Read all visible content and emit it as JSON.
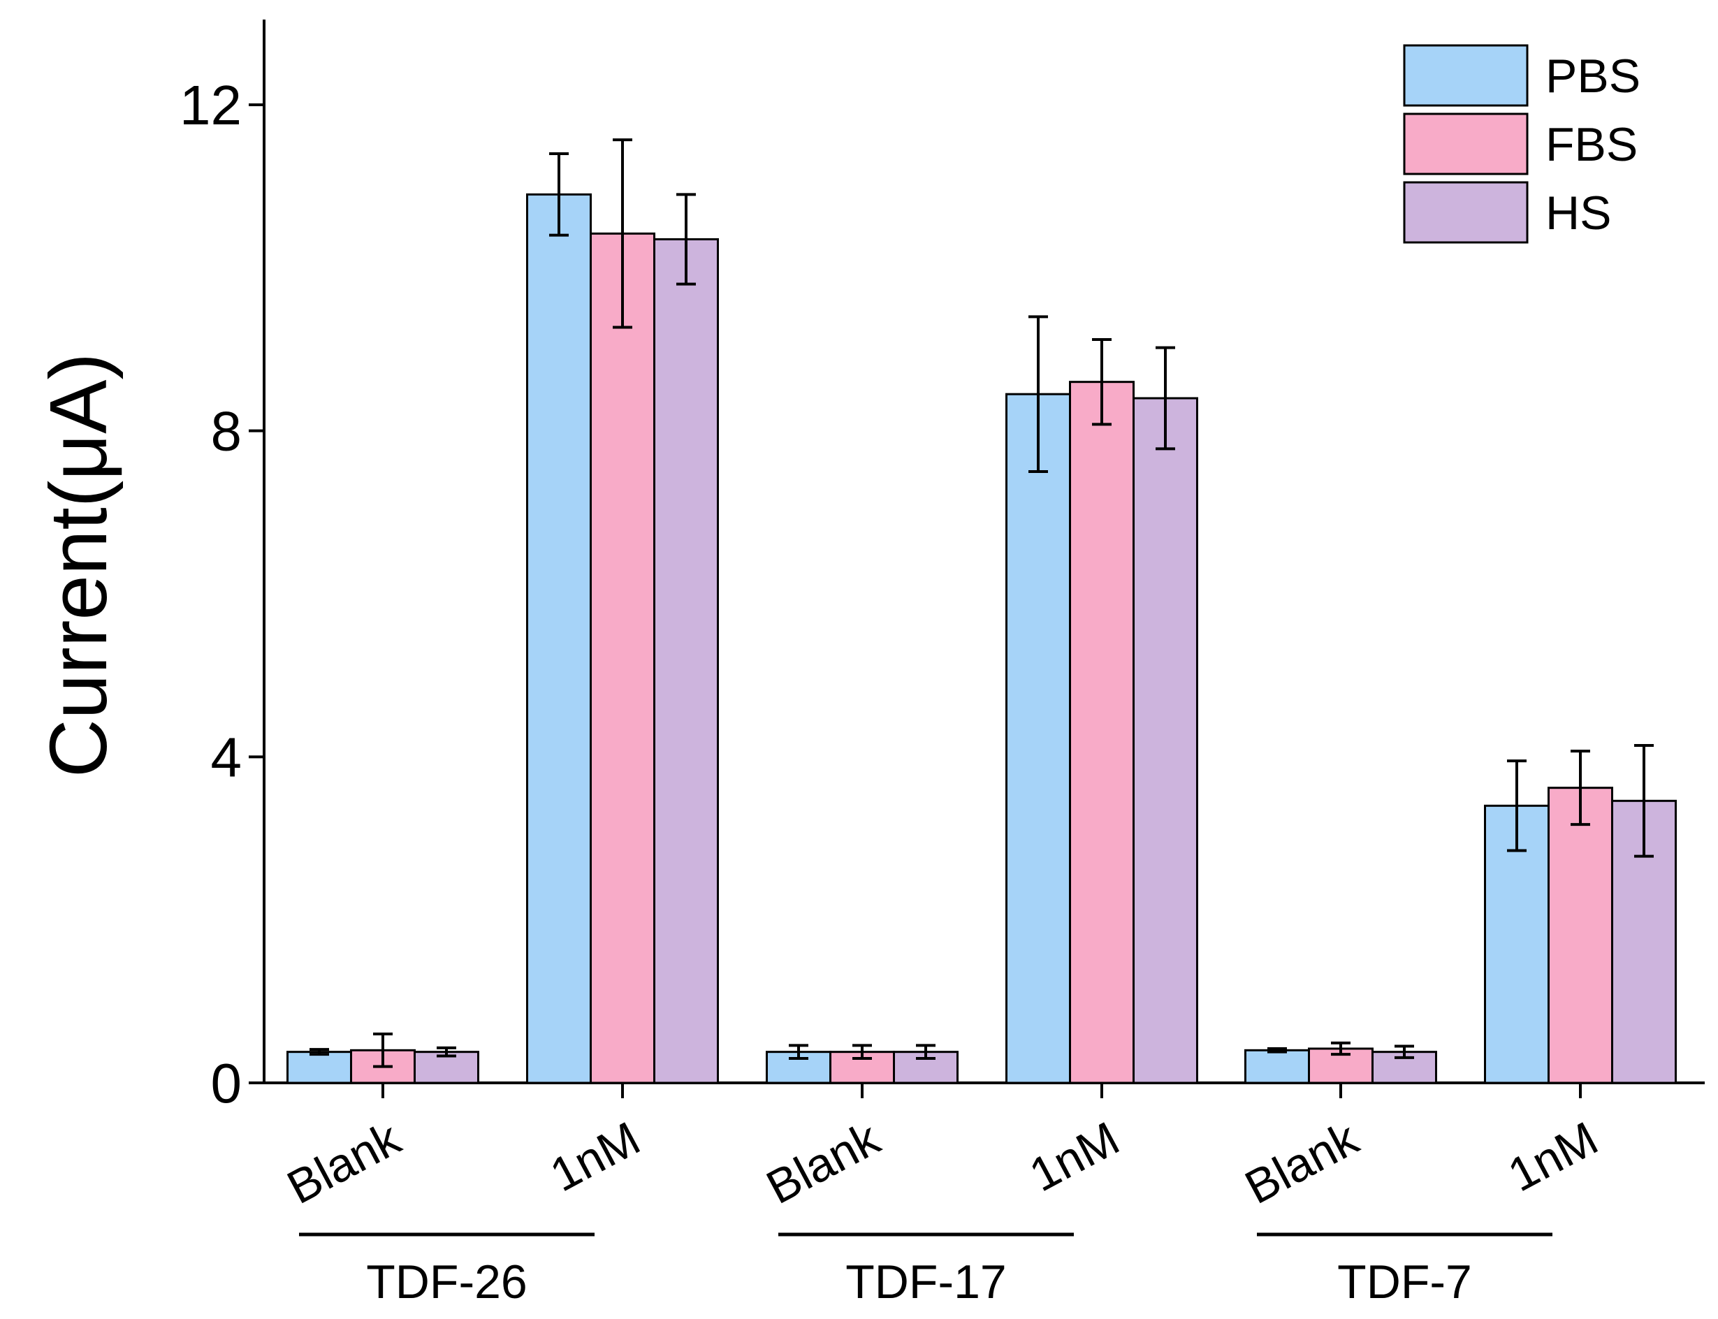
{
  "chart_data": {
    "type": "bar",
    "title": "",
    "xlabel": "",
    "ylabel": "Current(μA)",
    "ylim": [
      0,
      13
    ],
    "yticks": [
      0,
      4,
      8,
      12
    ],
    "grid": false,
    "legend_position": "top-right",
    "categories": [
      "Blank",
      "1nM",
      "Blank",
      "1nM",
      "Blank",
      "1nM"
    ],
    "groups": [
      {
        "label": "TDF-26",
        "categories": [
          0,
          1
        ]
      },
      {
        "label": "TDF-17",
        "categories": [
          2,
          3
        ]
      },
      {
        "label": "TDF-7",
        "categories": [
          4,
          5
        ]
      }
    ],
    "series": [
      {
        "name": "PBS",
        "color": "#a6d3f8",
        "values": [
          0.38,
          10.9,
          0.38,
          8.45,
          0.4,
          3.4
        ],
        "errors": [
          0.03,
          0.5,
          0.08,
          0.95,
          0.02,
          0.55
        ]
      },
      {
        "name": "FBS",
        "color": "#f8abc8",
        "values": [
          0.4,
          10.42,
          0.38,
          8.6,
          0.42,
          3.62
        ],
        "errors": [
          0.2,
          1.15,
          0.08,
          0.52,
          0.07,
          0.45
        ]
      },
      {
        "name": "HS",
        "color": "#cdb4dd",
        "values": [
          0.38,
          10.35,
          0.38,
          8.4,
          0.38,
          3.46
        ],
        "errors": [
          0.05,
          0.55,
          0.08,
          0.62,
          0.07,
          0.68
        ]
      }
    ]
  }
}
